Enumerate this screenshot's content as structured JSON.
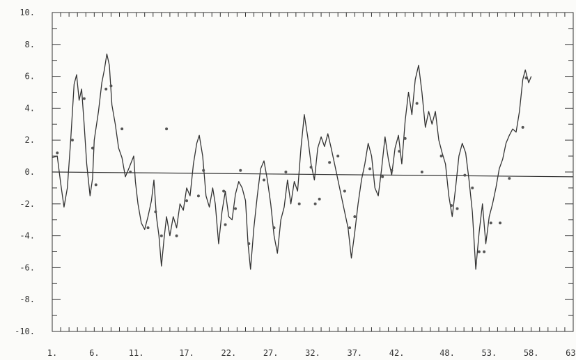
{
  "chart_data": {
    "type": "line",
    "title": "",
    "xlabel": "",
    "ylabel": "",
    "xlim": [
      1,
      63
    ],
    "ylim": [
      -10,
      10
    ],
    "grid": false,
    "legend": "none",
    "x_ticks": [
      "1.",
      "6.",
      "11.",
      "17.",
      "22.",
      "27.",
      "32.",
      "37.",
      "42.",
      "48.",
      "53.",
      "58.",
      "63."
    ],
    "x_tick_values": [
      1,
      6,
      11,
      17,
      22,
      27,
      32,
      37,
      42,
      48,
      53,
      58,
      63
    ],
    "y_ticks": [
      "10.",
      "8.",
      "6.",
      "4.",
      "2.",
      "0.",
      "-2.",
      "-4.",
      "-6.",
      "-8.",
      "-10."
    ],
    "y_tick_values": [
      10,
      8,
      6,
      4,
      2,
      0,
      -2,
      -4,
      -6,
      -8,
      -10
    ],
    "reference_line": {
      "x": [
        1,
        63
      ],
      "y": [
        0,
        -0.3
      ]
    },
    "series": [
      {
        "kind": "line",
        "color": "#333333",
        "points": [
          [
            1.0,
            0.9
          ],
          [
            1.6,
            1.0
          ],
          [
            2.0,
            -0.7
          ],
          [
            2.4,
            -2.2
          ],
          [
            2.8,
            -1.0
          ],
          [
            3.2,
            2.0
          ],
          [
            3.6,
            5.5
          ],
          [
            3.9,
            6.1
          ],
          [
            4.2,
            4.5
          ],
          [
            4.5,
            5.2
          ],
          [
            4.8,
            3.0
          ],
          [
            5.1,
            0.5
          ],
          [
            5.5,
            -1.5
          ],
          [
            5.8,
            -0.4
          ],
          [
            6.0,
            2.0
          ],
          [
            6.5,
            3.8
          ],
          [
            6.9,
            5.6
          ],
          [
            7.2,
            6.4
          ],
          [
            7.5,
            7.4
          ],
          [
            7.8,
            6.7
          ],
          [
            8.1,
            4.2
          ],
          [
            8.5,
            3.0
          ],
          [
            8.9,
            1.5
          ],
          [
            9.3,
            0.9
          ],
          [
            9.7,
            -0.3
          ],
          [
            10.1,
            0.2
          ],
          [
            10.4,
            0.6
          ],
          [
            10.7,
            1.0
          ],
          [
            10.9,
            -0.6
          ],
          [
            11.2,
            -2.0
          ],
          [
            11.6,
            -3.2
          ],
          [
            12.0,
            -3.6
          ],
          [
            12.4,
            -2.8
          ],
          [
            12.8,
            -1.8
          ],
          [
            13.1,
            -0.5
          ],
          [
            13.4,
            -2.8
          ],
          [
            13.7,
            -4.0
          ],
          [
            14.0,
            -5.9
          ],
          [
            14.3,
            -4.2
          ],
          [
            14.6,
            -2.8
          ],
          [
            15.0,
            -4.0
          ],
          [
            15.4,
            -2.8
          ],
          [
            15.8,
            -3.5
          ],
          [
            16.2,
            -2.0
          ],
          [
            16.6,
            -2.4
          ],
          [
            17.0,
            -1.0
          ],
          [
            17.4,
            -1.5
          ],
          [
            17.8,
            0.5
          ],
          [
            18.2,
            1.8
          ],
          [
            18.5,
            2.3
          ],
          [
            18.9,
            1.0
          ],
          [
            19.3,
            -1.5
          ],
          [
            19.7,
            -2.2
          ],
          [
            20.1,
            -1.0
          ],
          [
            20.4,
            -2.0
          ],
          [
            20.8,
            -4.5
          ],
          [
            21.2,
            -2.5
          ],
          [
            21.6,
            -1.2
          ],
          [
            22.0,
            -2.8
          ],
          [
            22.4,
            -3.0
          ],
          [
            22.8,
            -1.4
          ],
          [
            23.2,
            -0.6
          ],
          [
            23.6,
            -1.0
          ],
          [
            24.0,
            -1.8
          ],
          [
            24.3,
            -4.5
          ],
          [
            24.6,
            -6.1
          ],
          [
            25.0,
            -3.5
          ],
          [
            25.4,
            -1.5
          ],
          [
            25.8,
            0.2
          ],
          [
            26.2,
            0.7
          ],
          [
            26.6,
            -0.5
          ],
          [
            27.0,
            -2.0
          ],
          [
            27.4,
            -4.0
          ],
          [
            27.8,
            -5.1
          ],
          [
            28.2,
            -3.0
          ],
          [
            28.6,
            -2.2
          ],
          [
            29.0,
            -0.5
          ],
          [
            29.4,
            -2.0
          ],
          [
            29.8,
            -0.6
          ],
          [
            30.2,
            -1.2
          ],
          [
            30.6,
            1.5
          ],
          [
            31.0,
            3.6
          ],
          [
            31.4,
            2.2
          ],
          [
            31.8,
            0.5
          ],
          [
            32.2,
            -0.5
          ],
          [
            32.6,
            1.5
          ],
          [
            33.0,
            2.2
          ],
          [
            33.4,
            1.6
          ],
          [
            33.8,
            2.4
          ],
          [
            34.2,
            1.5
          ],
          [
            34.6,
            0.5
          ],
          [
            35.0,
            -0.5
          ],
          [
            35.4,
            -1.5
          ],
          [
            35.8,
            -2.5
          ],
          [
            36.2,
            -3.5
          ],
          [
            36.6,
            -5.4
          ],
          [
            37.0,
            -3.8
          ],
          [
            37.4,
            -2.0
          ],
          [
            37.8,
            -0.5
          ],
          [
            38.2,
            0.5
          ],
          [
            38.6,
            1.8
          ],
          [
            39.0,
            1.0
          ],
          [
            39.4,
            -1.0
          ],
          [
            39.8,
            -1.5
          ],
          [
            40.2,
            0.2
          ],
          [
            40.6,
            2.2
          ],
          [
            41.0,
            0.8
          ],
          [
            41.4,
            -0.2
          ],
          [
            41.8,
            1.5
          ],
          [
            42.2,
            2.3
          ],
          [
            42.6,
            0.5
          ],
          [
            43.0,
            3.2
          ],
          [
            43.4,
            5.0
          ],
          [
            43.8,
            3.6
          ],
          [
            44.2,
            5.8
          ],
          [
            44.6,
            6.7
          ],
          [
            45.0,
            5.0
          ],
          [
            45.4,
            2.8
          ],
          [
            45.8,
            3.8
          ],
          [
            46.2,
            3.0
          ],
          [
            46.6,
            3.8
          ],
          [
            47.0,
            2.0
          ],
          [
            47.4,
            1.2
          ],
          [
            47.8,
            0.5
          ],
          [
            48.2,
            -1.5
          ],
          [
            48.6,
            -2.8
          ],
          [
            49.0,
            -1.0
          ],
          [
            49.4,
            1.0
          ],
          [
            49.8,
            1.8
          ],
          [
            50.2,
            1.2
          ],
          [
            50.6,
            -0.5
          ],
          [
            51.0,
            -2.5
          ],
          [
            51.4,
            -6.1
          ],
          [
            51.8,
            -3.8
          ],
          [
            52.2,
            -2.0
          ],
          [
            52.6,
            -4.5
          ],
          [
            53.0,
            -2.8
          ],
          [
            53.4,
            -2.0
          ],
          [
            53.8,
            -1.0
          ],
          [
            54.2,
            0.2
          ],
          [
            54.6,
            0.8
          ],
          [
            55.0,
            1.8
          ],
          [
            55.4,
            2.3
          ],
          [
            55.8,
            2.7
          ],
          [
            56.2,
            2.5
          ],
          [
            56.6,
            3.8
          ],
          [
            57.0,
            5.8
          ],
          [
            57.3,
            6.4
          ],
          [
            57.7,
            5.6
          ],
          [
            58.0,
            6.0
          ]
        ]
      },
      {
        "kind": "scatter",
        "color": "#555555",
        "points": [
          [
            1.6,
            1.2
          ],
          [
            3.4,
            2.0
          ],
          [
            4.8,
            4.6
          ],
          [
            5.8,
            1.5
          ],
          [
            6.2,
            -0.8
          ],
          [
            7.4,
            5.2
          ],
          [
            8.0,
            5.4
          ],
          [
            9.3,
            2.7
          ],
          [
            10.3,
            0.0
          ],
          [
            12.4,
            -3.5
          ],
          [
            13.3,
            -2.5
          ],
          [
            14.0,
            -4.0
          ],
          [
            14.6,
            2.7
          ],
          [
            15.8,
            -4.0
          ],
          [
            17.0,
            -1.8
          ],
          [
            18.4,
            -1.5
          ],
          [
            19.0,
            0.1
          ],
          [
            21.4,
            -1.2
          ],
          [
            21.6,
            -3.3
          ],
          [
            22.8,
            -2.3
          ],
          [
            23.4,
            0.1
          ],
          [
            24.4,
            -4.5
          ],
          [
            26.2,
            -0.5
          ],
          [
            27.4,
            -3.5
          ],
          [
            28.8,
            0.0
          ],
          [
            30.4,
            -2.0
          ],
          [
            31.8,
            0.3
          ],
          [
            32.3,
            -2.0
          ],
          [
            32.8,
            -1.7
          ],
          [
            34.0,
            0.6
          ],
          [
            35.0,
            1.0
          ],
          [
            35.8,
            -1.2
          ],
          [
            36.4,
            -3.5
          ],
          [
            37.0,
            -2.8
          ],
          [
            38.8,
            0.2
          ],
          [
            40.3,
            -0.3
          ],
          [
            41.4,
            0.1
          ],
          [
            42.3,
            1.3
          ],
          [
            43.0,
            2.1
          ],
          [
            44.4,
            4.3
          ],
          [
            45.0,
            0.0
          ],
          [
            47.3,
            1.0
          ],
          [
            48.5,
            -2.1
          ],
          [
            49.2,
            -2.3
          ],
          [
            50.1,
            -0.2
          ],
          [
            51.0,
            -1.0
          ],
          [
            51.8,
            -5.0
          ],
          [
            52.4,
            -5.0
          ],
          [
            53.2,
            -3.2
          ],
          [
            54.3,
            -3.2
          ],
          [
            55.4,
            -0.4
          ],
          [
            57.0,
            2.8
          ],
          [
            57.4,
            5.9
          ]
        ]
      }
    ]
  }
}
